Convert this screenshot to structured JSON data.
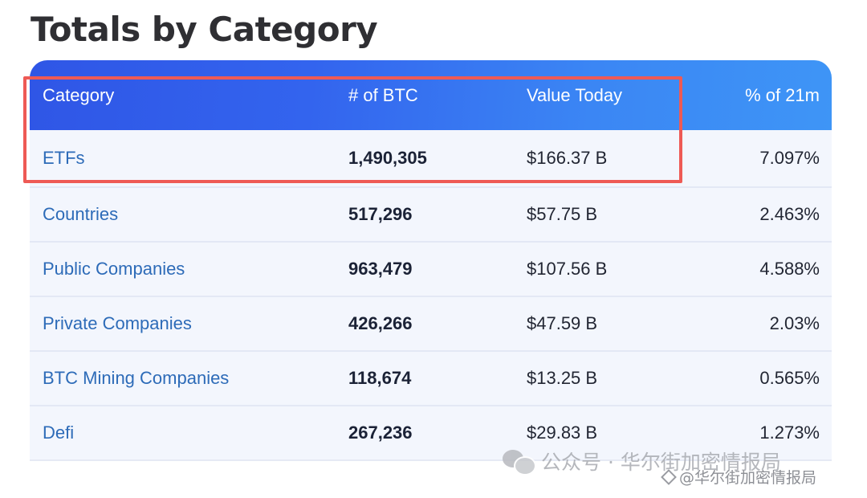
{
  "page": {
    "title": "Totals by Category"
  },
  "table": {
    "headers": [
      "Category",
      "# of BTC",
      "Value Today",
      "% of 21m"
    ],
    "rows": [
      {
        "category": "ETFs",
        "btc": "1,490,305",
        "value": "$166.37 B",
        "pct": "7.097%"
      },
      {
        "category": "Countries",
        "btc": "517,296",
        "value": "$57.75 B",
        "pct": "2.463%"
      },
      {
        "category": "Public Companies",
        "btc": "963,479",
        "value": "$107.56 B",
        "pct": "4.588%"
      },
      {
        "category": "Private Companies",
        "btc": "426,266",
        "value": "$47.59 B",
        "pct": "2.03%"
      },
      {
        "category": "BTC Mining Companies",
        "btc": "118,674",
        "value": "$13.25 B",
        "pct": "0.565%"
      },
      {
        "category": "Defi",
        "btc": "267,236",
        "value": "$29.83 B",
        "pct": "1.273%"
      }
    ]
  },
  "colors": {
    "header_gradient_start": "#2f56e6",
    "header_gradient_end": "#3e95f6",
    "category_link": "#2d6bb8",
    "highlight_box": "#ee5a55",
    "row_background": "#f3f6fd"
  },
  "watermark": {
    "main_text": "公众号 · 华尔街加密情报局",
    "small_text": "@华尔街加密情报局",
    "icons": [
      "wechat-icon",
      "diamond-icon"
    ]
  }
}
